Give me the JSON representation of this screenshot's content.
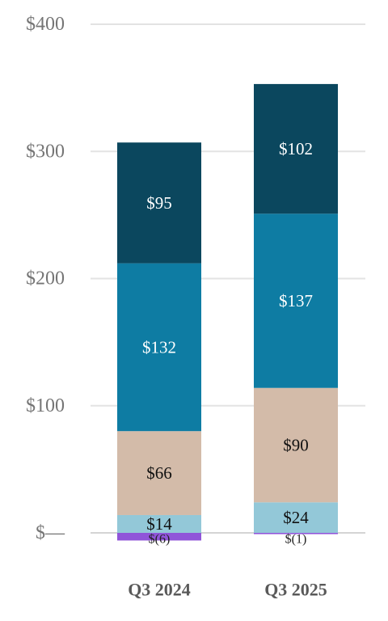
{
  "chart_data": {
    "type": "bar",
    "stacked": true,
    "categories": [
      "Q3 2024",
      "Q3 2025"
    ],
    "series": [
      {
        "values": [
          -6,
          -1
        ],
        "labels": [
          "$(6)",
          "$(1)"
        ],
        "color": "#9055d9",
        "label_color": "#222222"
      },
      {
        "values": [
          14,
          24
        ],
        "labels": [
          "$14",
          "$24"
        ],
        "color": "#93c8d8",
        "label_color": "#111111"
      },
      {
        "values": [
          66,
          90
        ],
        "labels": [
          "$66",
          "$90"
        ],
        "color": "#d3bba9",
        "label_color": "#111111"
      },
      {
        "values": [
          132,
          137
        ],
        "labels": [
          "$132",
          "$137"
        ],
        "color": "#0e7ca3",
        "label_color": "#ffffff"
      },
      {
        "values": [
          95,
          102
        ],
        "labels": [
          "$95",
          "$102"
        ],
        "color": "#0b475e",
        "label_color": "#ffffff"
      }
    ],
    "yticks": [
      0,
      100,
      200,
      300,
      400
    ],
    "ytick_labels": [
      "$—",
      "$100",
      "$200",
      "$300",
      "$400"
    ],
    "ylim": [
      -10,
      400
    ],
    "grid": true,
    "legend": "none",
    "title": "",
    "xlabel": "",
    "ylabel": ""
  }
}
